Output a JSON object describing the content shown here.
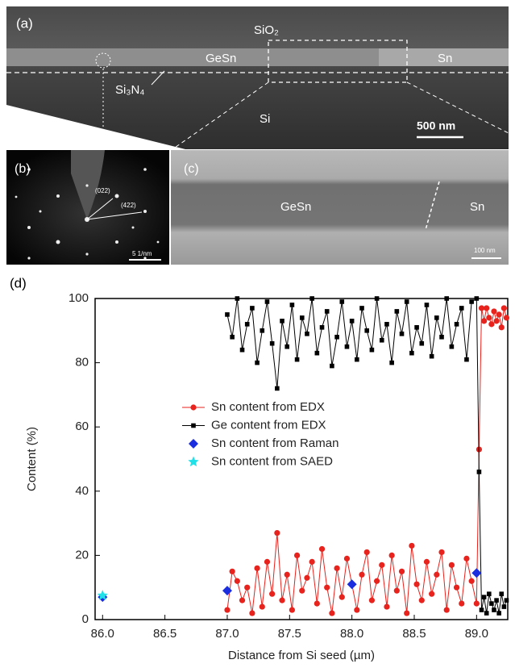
{
  "figure": {
    "a": {
      "label": "(a)",
      "sio2": "SiO₂",
      "gesn": "GeSn",
      "sn": "Sn",
      "si3n4": "Si₃N₄",
      "si": "Si",
      "scale": "500 nm"
    },
    "b": {
      "label": "(b)",
      "spot1": "(022)",
      "spot2": "(422)",
      "scale": "5 1/nm"
    },
    "c": {
      "label": "(c)",
      "gesn": "GeSn",
      "sn": "Sn",
      "scale": "100 nm"
    },
    "d": {
      "label": "(d)"
    }
  },
  "chart_data": {
    "type": "scatter",
    "xlabel": "Distance from Si seed (µm)",
    "ylabel": "Content (%)",
    "xlim": [
      85.94,
      89.25
    ],
    "ylim": [
      0,
      100
    ],
    "xticks": [
      {
        "value": 86,
        "label": "86.0"
      },
      {
        "value": 86.5,
        "label": "86.5"
      },
      {
        "value": 87,
        "label": "87.0"
      },
      {
        "value": 87.5,
        "label": "87.5"
      },
      {
        "value": 88,
        "label": "88.0"
      },
      {
        "value": 88.5,
        "label": "88.5"
      },
      {
        "value": 89,
        "label": "89.0"
      }
    ],
    "yticks": [
      0,
      20,
      40,
      60,
      80,
      100
    ],
    "legend": "center",
    "series": [
      {
        "name": "Sn content from EDX",
        "color": "#e8221c",
        "marker": "circle",
        "line": true,
        "x": [
          87.0,
          87.04,
          87.08,
          87.12,
          87.16,
          87.2,
          87.24,
          87.28,
          87.32,
          87.36,
          87.4,
          87.44,
          87.48,
          87.52,
          87.56,
          87.6,
          87.64,
          87.68,
          87.72,
          87.76,
          87.8,
          87.84,
          87.88,
          87.92,
          87.96,
          88.0,
          88.04,
          88.08,
          88.12,
          88.16,
          88.2,
          88.24,
          88.28,
          88.32,
          88.36,
          88.4,
          88.44,
          88.48,
          88.52,
          88.56,
          88.6,
          88.64,
          88.68,
          88.72,
          88.76,
          88.8,
          88.84,
          88.88,
          88.92,
          88.96,
          89.0,
          89.02,
          89.04,
          89.06,
          89.08,
          89.1,
          89.12,
          89.14,
          89.16,
          89.18,
          89.2,
          89.22,
          89.24
        ],
        "values": [
          3,
          15,
          12,
          6,
          10,
          2,
          16,
          4,
          18,
          8,
          27,
          6,
          14,
          3,
          20,
          9,
          13,
          18,
          5,
          22,
          10,
          2,
          16,
          7,
          19,
          11,
          3,
          14,
          21,
          6,
          12,
          17,
          4,
          20,
          9,
          15,
          2,
          23,
          11,
          6,
          18,
          8,
          14,
          21,
          3,
          17,
          10,
          5,
          19,
          12,
          5,
          53,
          97,
          93,
          97,
          94,
          92,
          96,
          93,
          95,
          91,
          97,
          94
        ]
      },
      {
        "name": "Ge content  from EDX",
        "color": "#000000",
        "marker": "square",
        "line": true,
        "x": [
          87.0,
          87.04,
          87.08,
          87.12,
          87.16,
          87.2,
          87.24,
          87.28,
          87.32,
          87.36,
          87.4,
          87.44,
          87.48,
          87.52,
          87.56,
          87.6,
          87.64,
          87.68,
          87.72,
          87.76,
          87.8,
          87.84,
          87.88,
          87.92,
          87.96,
          88.0,
          88.04,
          88.08,
          88.12,
          88.16,
          88.2,
          88.24,
          88.28,
          88.32,
          88.36,
          88.4,
          88.44,
          88.48,
          88.52,
          88.56,
          88.6,
          88.64,
          88.68,
          88.72,
          88.76,
          88.8,
          88.84,
          88.88,
          88.92,
          88.96,
          89.0,
          89.02,
          89.04,
          89.06,
          89.08,
          89.1,
          89.12,
          89.14,
          89.16,
          89.18,
          89.2,
          89.22,
          89.24
        ],
        "values": [
          95,
          88,
          100,
          84,
          92,
          97,
          80,
          90,
          99,
          86,
          72,
          93,
          85,
          98,
          81,
          94,
          89,
          100,
          83,
          91,
          96,
          79,
          88,
          99,
          85,
          93,
          81,
          97,
          90,
          84,
          100,
          87,
          92,
          80,
          96,
          89,
          99,
          83,
          91,
          86,
          98,
          82,
          94,
          88,
          100,
          85,
          92,
          97,
          81,
          99,
          100,
          46,
          3,
          7,
          2,
          8,
          5,
          3,
          6,
          2,
          8,
          4,
          6
        ]
      },
      {
        "name": "Sn content  from Raman",
        "color": "#1a2ee0",
        "marker": "diamond",
        "line": false,
        "x": [
          86.0,
          87.0,
          88.0,
          89.0
        ],
        "values": [
          7,
          9,
          11,
          14.5
        ]
      },
      {
        "name": "Sn content  from SAED",
        "color": "#22e0e8",
        "marker": "star",
        "line": false,
        "x": [
          86.0
        ],
        "values": [
          7.5
        ]
      }
    ]
  }
}
